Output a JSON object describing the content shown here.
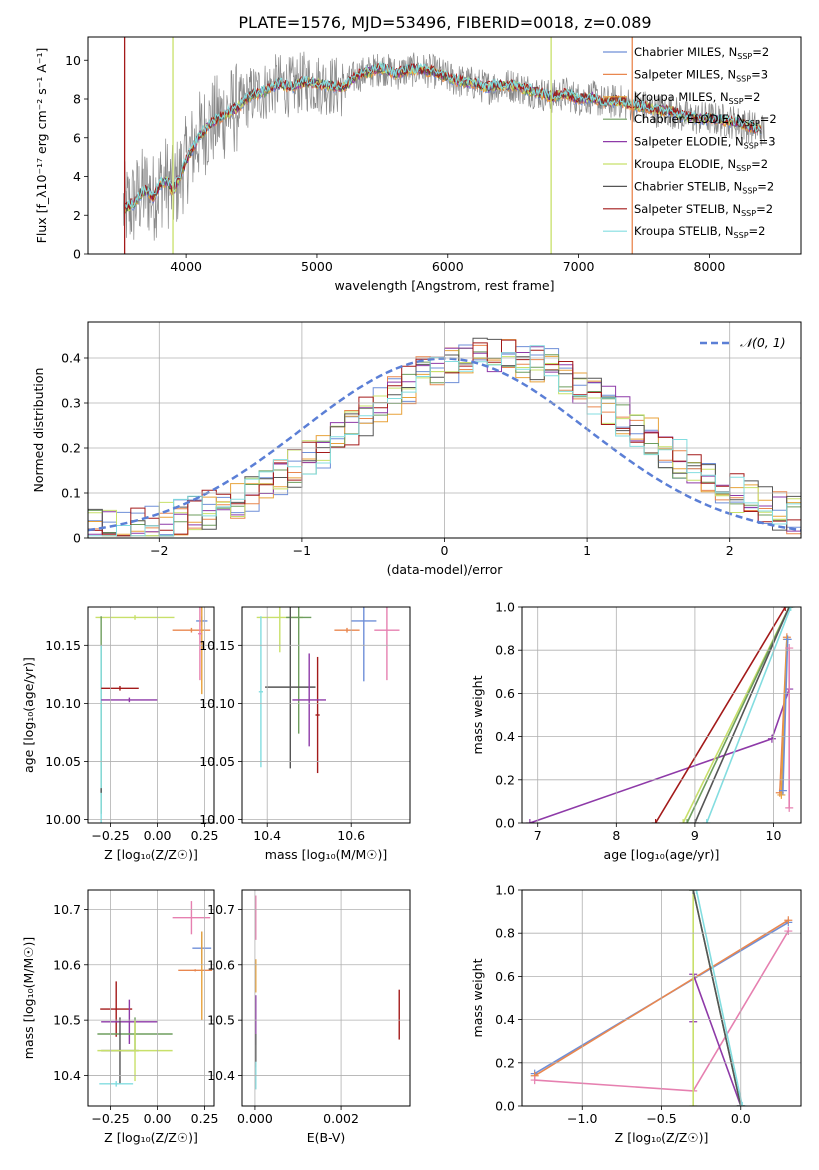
{
  "figure_title": "PLATE=1576, MJD=53496, FIBERID=0018, z=0.089",
  "colors": {
    "chabrier_miles": "#6f8fd8",
    "salpeter_miles": "#e9874f",
    "kroupa_miles": "#e8a23a",
    "chabrier_elodie": "#6e9e5e",
    "salpeter_elodie": "#8e3aa8",
    "kroupa_elodie": "#c8e06a",
    "chabrier_stelib": "#555555",
    "salpeter_stelib": "#a31a1a",
    "kroupa_stelib": "#83dde0",
    "pink": "#e680b0",
    "gauss": "#5b7fd6",
    "data": "#888888",
    "grid": "#b0b0b0"
  },
  "chart_data": [
    {
      "id": "spectrum",
      "type": "line",
      "xlabel": "wavelength [Angstrom, rest frame]",
      "ylabel": "Flux [f_λ10⁻¹⁷ erg cm⁻² s⁻¹ A⁻¹]",
      "xlim": [
        3250,
        8700
      ],
      "ylim": [
        0,
        11.2
      ],
      "xticks": [
        4000,
        5000,
        6000,
        7000,
        8000
      ],
      "yticks": [
        0,
        2,
        4,
        6,
        8,
        10
      ],
      "grid": false,
      "legend": "right",
      "x": [
        3550,
        3600,
        3650,
        3700,
        3750,
        3800,
        3850,
        3900,
        3950,
        4000,
        4100,
        4200,
        4300,
        4400,
        4500,
        4600,
        4700,
        4800,
        4900,
        5000,
        5100,
        5200,
        5300,
        5400,
        5500,
        5600,
        5700,
        5800,
        5900,
        6000,
        6100,
        6200,
        6300,
        6400,
        6500,
        6600,
        6700,
        6800,
        6900,
        7000,
        7100,
        7200,
        7300,
        7400,
        7500,
        7600,
        7700,
        7800,
        7900,
        8000,
        8100,
        8200,
        8300,
        8400
      ],
      "model_flux": [
        2.4,
        2.6,
        3.1,
        3.3,
        2.9,
        3.6,
        3.8,
        3.2,
        4.0,
        4.8,
        6.1,
        6.8,
        7.2,
        7.6,
        8.2,
        8.4,
        8.8,
        8.6,
        8.9,
        8.8,
        8.7,
        8.6,
        9.2,
        9.4,
        9.6,
        9.3,
        9.5,
        9.5,
        9.4,
        9.1,
        8.9,
        8.8,
        8.6,
        8.7,
        8.7,
        8.5,
        8.3,
        8.1,
        8.3,
        8.0,
        8.1,
        7.8,
        7.9,
        7.7,
        7.6,
        7.4,
        7.4,
        7.1,
        7.0,
        7.0,
        6.9,
        6.8,
        6.6,
        6.4
      ],
      "series": [
        {
          "name": "Chabrier MILES, N_SSP=2"
        },
        {
          "name": "Salpeter MILES, N_SSP=3"
        },
        {
          "name": "Kroupa MILES, N_SSP=2"
        },
        {
          "name": "Chabrier ELODIE, N_SSP=2"
        },
        {
          "name": "Salpeter ELODIE, N_SSP=3"
        },
        {
          "name": "Kroupa ELODIE, N_SSP=2"
        },
        {
          "name": "Chabrier STELIB, N_SSP=2"
        },
        {
          "name": "Salpeter STELIB, N_SSP=2"
        },
        {
          "name": "Kroupa STELIB, N_SSP=2"
        }
      ],
      "vlines": [
        3530,
        3900,
        6790,
        7410
      ],
      "legend_labels": [
        {
          "pre": "Chabrier MILES, N",
          "sub": "SSP",
          "post": "=2"
        },
        {
          "pre": "Salpeter MILES, N",
          "sub": "SSP",
          "post": "=3"
        },
        {
          "pre": "Kroupa MILES, N",
          "sub": "SSP",
          "post": "=2"
        },
        {
          "pre": "Chabrier ELODIE, N",
          "sub": "SSP",
          "post": "=2"
        },
        {
          "pre": "Salpeter ELODIE, N",
          "sub": "SSP",
          "post": "=3"
        },
        {
          "pre": "Kroupa ELODIE, N",
          "sub": "SSP",
          "post": "=2"
        },
        {
          "pre": "Chabrier STELIB, N",
          "sub": "SSP",
          "post": "=2"
        },
        {
          "pre": "Salpeter STELIB, N",
          "sub": "SSP",
          "post": "=2"
        },
        {
          "pre": "Kroupa STELIB, N",
          "sub": "SSP",
          "post": "=2"
        }
      ]
    },
    {
      "id": "residuals",
      "type": "line",
      "xlabel": "(data-model)/error",
      "ylabel": "Normed distribution",
      "xlim": [
        -2.5,
        2.5
      ],
      "ylim": [
        0,
        0.48
      ],
      "xticks": [
        -2,
        -1,
        0,
        1,
        2
      ],
      "yticks": [
        0.0,
        0.1,
        0.2,
        0.3,
        0.4
      ],
      "grid": true,
      "legend": "top-right",
      "gaussian_label": "𝒩(0, 1)",
      "bin_width": 0.1,
      "histogram_y": [
        0.02,
        0.022,
        0.025,
        0.028,
        0.033,
        0.038,
        0.045,
        0.053,
        0.062,
        0.072,
        0.085,
        0.1,
        0.116,
        0.135,
        0.155,
        0.175,
        0.198,
        0.222,
        0.247,
        0.27,
        0.295,
        0.318,
        0.34,
        0.36,
        0.377,
        0.39,
        0.4,
        0.408,
        0.41,
        0.408,
        0.4,
        0.39,
        0.377,
        0.36,
        0.34,
        0.318,
        0.295,
        0.27,
        0.247,
        0.222,
        0.198,
        0.175,
        0.155,
        0.135,
        0.116,
        0.1,
        0.085,
        0.072,
        0.06,
        0.05
      ]
    },
    {
      "id": "age_vs_Z",
      "type": "scatter",
      "xlabel": "Z [log₁₀(Z/Z☉)]",
      "ylabel": "age  [log₁₀(age/yr)]",
      "xlim": [
        -0.37,
        0.3
      ],
      "ylim": [
        9.997,
        10.183
      ],
      "xticks": [
        -0.25,
        0.0,
        0.25
      ],
      "xticklabels": [
        "−0.25",
        "0.00",
        "0.25"
      ],
      "yticks": [
        10.0,
        10.05,
        10.1,
        10.15
      ],
      "yticklabels": [
        "10.00",
        "10.05",
        "10.10",
        "10.15"
      ],
      "grid": true,
      "points": [
        {
          "s": "chabrier_miles",
          "x": 0.235,
          "y": 10.171,
          "xe": 0.03,
          "ye": 0.004
        },
        {
          "s": "salpeter_miles",
          "x": 0.18,
          "y": 10.163,
          "xe": 0.1,
          "ye": 0.002
        },
        {
          "s": "kroupa_miles",
          "x": 0.235,
          "y": 10.163,
          "xe": 0.005,
          "ye": 0.055
        },
        {
          "s": "pink",
          "x": 0.225,
          "y": 10.16,
          "xe": 0.01,
          "ye": 0.04
        },
        {
          "s": "kroupa_elodie",
          "x": -0.12,
          "y": 10.174,
          "xe": 0.21,
          "ye": 0.002
        },
        {
          "s": "chabrier_elodie",
          "x": -0.3,
          "y": 10.09,
          "xe": 0.002,
          "ye": 0.085
        },
        {
          "s": "kroupa_stelib",
          "x": -0.3,
          "y": 10.05,
          "xe": 0.002,
          "ye": 0.1
        },
        {
          "s": "salpeter_stelib",
          "x": -0.2,
          "y": 10.113,
          "xe": 0.1,
          "ye": 0.002
        },
        {
          "s": "salpeter_elodie",
          "x": -0.15,
          "y": 10.103,
          "xe": 0.15,
          "ye": 0.002
        },
        {
          "s": "chabrier_stelib",
          "x": -0.3,
          "y": 10.025,
          "xe": 0.002,
          "ye": 0.002
        }
      ]
    },
    {
      "id": "age_vs_mass",
      "type": "scatter",
      "xlabel": "mass [log₁₀(M/M☉)]",
      "ylabel": "",
      "xlim": [
        10.34,
        10.74
      ],
      "ylim": [
        9.997,
        10.183
      ],
      "xticks": [
        10.4,
        10.6
      ],
      "xticklabels": [
        "10.4",
        "10.6"
      ],
      "yticks": [
        10.0,
        10.05,
        10.1,
        10.15
      ],
      "yticklabels": [
        "10.00",
        "10.05",
        "10.10",
        "10.15"
      ],
      "grid": true,
      "points": [
        {
          "s": "kroupa_elodie",
          "x": 10.43,
          "y": 10.174,
          "xe": 0.055,
          "ye": 0.03
        },
        {
          "s": "chabrier_elodie",
          "x": 10.475,
          "y": 10.174,
          "xe": 0.03,
          "ye": 0.1
        },
        {
          "s": "kroupa_stelib",
          "x": 10.385,
          "y": 10.11,
          "xe": 0.005,
          "ye": 0.065
        },
        {
          "s": "chabrier_stelib",
          "x": 10.455,
          "y": 10.114,
          "xe": 0.06,
          "ye": 0.07
        },
        {
          "s": "salpeter_stelib",
          "x": 10.52,
          "y": 10.09,
          "xe": 0.005,
          "ye": 0.05
        },
        {
          "s": "salpeter_elodie",
          "x": 10.5,
          "y": 10.103,
          "xe": 0.04,
          "ye": 0.04
        },
        {
          "s": "salpeter_miles",
          "x": 10.59,
          "y": 10.163,
          "xe": 0.03,
          "ye": 0.002
        },
        {
          "s": "chabrier_miles",
          "x": 10.63,
          "y": 10.171,
          "xe": 0.03,
          "ye": 0.052
        },
        {
          "s": "pink",
          "x": 10.685,
          "y": 10.163,
          "xe": 0.03,
          "ye": 0.043
        }
      ]
    },
    {
      "id": "mass_weight_vs_age",
      "type": "line",
      "xlabel": "age  [log₁₀(age/yr)]",
      "ylabel": "mass weight",
      "xlim": [
        6.8,
        10.35
      ],
      "ylim": [
        0,
        1.0
      ],
      "xticks": [
        7,
        8,
        9,
        10
      ],
      "yticks": [
        0,
        0.2,
        0.4,
        0.6,
        0.8,
        1.0
      ],
      "yticklabels": [
        "0.0",
        "0.2",
        "0.4",
        "0.6",
        "0.8",
        "1.0"
      ],
      "grid": true,
      "series": [
        {
          "s": "salpeter_elodie",
          "x": [
            6.9,
            9.98,
            10.2
          ],
          "y": [
            0.0,
            0.39,
            0.62
          ]
        },
        {
          "s": "salpeter_stelib",
          "x": [
            8.5,
            10.15
          ],
          "y": [
            0.0,
            1.0
          ]
        },
        {
          "s": "kroupa_elodie",
          "x": [
            8.85,
            10.2
          ],
          "y": [
            0.0,
            1.0
          ]
        },
        {
          "s": "chabrier_elodie",
          "x": [
            8.9,
            10.2
          ],
          "y": [
            0.0,
            1.0
          ]
        },
        {
          "s": "chabrier_stelib",
          "x": [
            9.0,
            10.2
          ],
          "y": [
            0.0,
            1.0
          ]
        },
        {
          "s": "kroupa_stelib",
          "x": [
            9.15,
            10.22
          ],
          "y": [
            0.0,
            1.0
          ]
        },
        {
          "s": "salpeter_miles",
          "x": [
            10.08,
            10.17
          ],
          "y": [
            0.14,
            0.86
          ]
        },
        {
          "s": "kroupa_miles",
          "x": [
            10.1,
            10.17
          ],
          "y": [
            0.13,
            0.85
          ]
        },
        {
          "s": "chabrier_miles",
          "x": [
            10.12,
            10.18
          ],
          "y": [
            0.15,
            0.85
          ]
        },
        {
          "s": "pink",
          "x": [
            10.2,
            10.2
          ],
          "y": [
            0.07,
            0.81
          ]
        }
      ]
    },
    {
      "id": "mass_vs_Z",
      "type": "scatter",
      "xlabel": "Z [log₁₀(Z/Z☉)]",
      "ylabel": "mass [log₁₀(M/M☉)]",
      "xlim": [
        -0.37,
        0.3
      ],
      "ylim": [
        10.345,
        10.735
      ],
      "xticks": [
        -0.25,
        0.0,
        0.25
      ],
      "xticklabels": [
        "−0.25",
        "0.00",
        "0.25"
      ],
      "yticks": [
        10.4,
        10.5,
        10.6,
        10.7
      ],
      "yticklabels": [
        "10.4",
        "10.5",
        "10.6",
        "10.7"
      ],
      "grid": true,
      "points": [
        {
          "s": "pink",
          "x": 0.18,
          "y": 10.685,
          "xe": 0.1,
          "ye": 0.03
        },
        {
          "s": "chabrier_miles",
          "x": 0.235,
          "y": 10.63,
          "xe": 0.05,
          "ye": 0.03
        },
        {
          "s": "salpeter_miles",
          "x": 0.2,
          "y": 10.59,
          "xe": 0.09,
          "ye": 0.002
        },
        {
          "s": "kroupa_miles",
          "x": 0.235,
          "y": 10.58,
          "xe": 0.002,
          "ye": 0.08
        },
        {
          "s": "salpeter_stelib",
          "x": -0.22,
          "y": 10.52,
          "xe": 0.085,
          "ye": 0.05
        },
        {
          "s": "salpeter_elodie",
          "x": -0.15,
          "y": 10.497,
          "xe": 0.15,
          "ye": 0.04
        },
        {
          "s": "chabrier_elodie",
          "x": -0.12,
          "y": 10.475,
          "xe": 0.2,
          "ye": 0.03
        },
        {
          "s": "chabrier_stelib",
          "x": -0.2,
          "y": 10.445,
          "xe": 0.1,
          "ye": 0.06
        },
        {
          "s": "kroupa_elodie",
          "x": -0.12,
          "y": 10.445,
          "xe": 0.2,
          "ye": 0.055
        },
        {
          "s": "kroupa_stelib",
          "x": -0.22,
          "y": 10.385,
          "xe": 0.09,
          "ye": 0.005
        }
      ]
    },
    {
      "id": "mass_vs_ebv",
      "type": "scatter",
      "xlabel": "E(B-V)",
      "ylabel": "",
      "xlim": [
        -0.0003,
        0.0036
      ],
      "ylim": [
        10.345,
        10.735
      ],
      "xticks": [
        0.0,
        0.002
      ],
      "xticklabels": [
        "0.000",
        "0.002"
      ],
      "yticks": [
        10.4,
        10.5,
        10.6,
        10.7
      ],
      "yticklabels": [
        "10.4",
        "10.5",
        "10.6",
        "10.7"
      ],
      "grid": true,
      "points": [
        {
          "s": "pink",
          "x": 2e-05,
          "y": 10.685,
          "xe": 0,
          "ye": 0.04
        },
        {
          "s": "kroupa_miles",
          "x": 2e-05,
          "y": 10.58,
          "xe": 0,
          "ye": 0.03
        },
        {
          "s": "salpeter_elodie",
          "x": 2e-05,
          "y": 10.5,
          "xe": 0,
          "ye": 0.045
        },
        {
          "s": "chabrier_stelib",
          "x": 2e-05,
          "y": 10.445,
          "xe": 0,
          "ye": 0.03
        },
        {
          "s": "kroupa_stelib",
          "x": 2e-05,
          "y": 10.4,
          "xe": 0,
          "ye": 0.025
        },
        {
          "s": "salpeter_stelib",
          "x": 0.00335,
          "y": 10.51,
          "xe": 0,
          "ye": 0.045
        }
      ]
    },
    {
      "id": "mass_weight_vs_Z",
      "type": "line",
      "xlabel": "Z [log₁₀(Z/Z☉)]",
      "ylabel": "mass weight",
      "xlim": [
        -1.38,
        0.38
      ],
      "ylim": [
        0,
        1.0
      ],
      "xticks": [
        -1.0,
        -0.5,
        0.0
      ],
      "xticklabels": [
        "−1.0",
        "−0.5",
        "0.0"
      ],
      "yticks": [
        0,
        0.2,
        0.4,
        0.6,
        0.8,
        1.0
      ],
      "yticklabels": [
        "0.0",
        "0.2",
        "0.4",
        "0.6",
        "0.8",
        "1.0"
      ],
      "grid": true,
      "series": [
        {
          "s": "chabrier_miles",
          "x": [
            -1.3,
            0.3
          ],
          "y": [
            0.15,
            0.85
          ]
        },
        {
          "s": "salpeter_miles",
          "x": [
            -1.3,
            0.3
          ],
          "y": [
            0.14,
            0.86
          ]
        },
        {
          "s": "pink",
          "x": [
            -1.3,
            -0.3,
            0.3
          ],
          "y": [
            0.12,
            0.07,
            0.81
          ]
        },
        {
          "s": "salpeter_elodie",
          "x": [
            -0.3,
            -0.3,
            0.0
          ],
          "y": [
            0.39,
            0.61,
            0.0
          ]
        },
        {
          "s": "kroupa_elodie",
          "x": [
            -0.3,
            -0.3
          ],
          "y": [
            0.0,
            1.0
          ]
        },
        {
          "s": "chabrier_elodie",
          "x": [
            -0.3,
            0.0
          ],
          "y": [
            1.0,
            0.0
          ]
        },
        {
          "s": "chabrier_stelib",
          "x": [
            -0.3,
            0.0
          ],
          "y": [
            1.0,
            0.0
          ]
        },
        {
          "s": "kroupa_stelib",
          "x": [
            -0.28,
            0.01
          ],
          "y": [
            1.0,
            0.0
          ]
        }
      ]
    }
  ]
}
